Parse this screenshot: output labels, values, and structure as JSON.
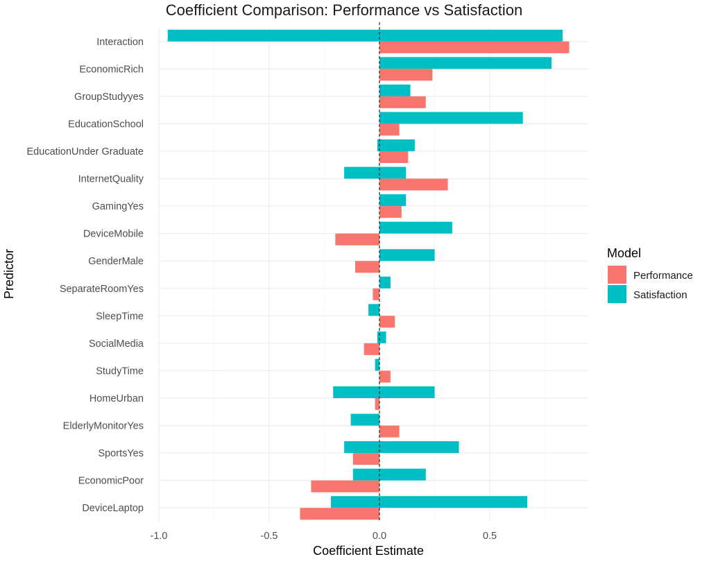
{
  "chart_data": {
    "type": "bar",
    "orientation": "horizontal",
    "title": "Coefficient Comparison: Performance vs Satisfaction",
    "xlabel": "Coefficient Estimate",
    "ylabel": "Predictor",
    "xlim": [
      -1.0,
      0.95
    ],
    "xticks": [
      -1.0,
      -0.5,
      0.0,
      0.5
    ],
    "xtick_labels": [
      "-1.0",
      "-0.5",
      "0.0",
      "0.5"
    ],
    "reference_line": 0,
    "grid": true,
    "legend": {
      "title": "Model",
      "position": "right"
    },
    "categories": [
      "Interaction",
      "EconomicRich",
      "GroupStudyyes",
      "EducationSchool",
      "EducationUnder Graduate",
      "InternetQuality",
      "GamingYes",
      "DeviceMobile",
      "GenderMale",
      "SeparateRoomYes",
      "SleepTime",
      "SocialMedia",
      "StudyTime",
      "HomeUrban",
      "ElderlyMonitorYes",
      "SportsYes",
      "EconomicPoor",
      "DeviceLaptop"
    ],
    "series": [
      {
        "name": "Performance",
        "color": "#F8766D",
        "values": [
          0.86,
          0.24,
          0.21,
          0.09,
          0.13,
          0.31,
          0.1,
          -0.2,
          -0.11,
          -0.03,
          0.07,
          -0.07,
          0.05,
          -0.02,
          0.09,
          -0.12,
          -0.31,
          -0.36
        ]
      },
      {
        "name": "Satisfaction",
        "color": "#00BFC4",
        "values": [
          -0.96,
          0.78,
          0.14,
          0.65,
          0.16,
          -0.16,
          0.12,
          0.33,
          0.25,
          0.05,
          -0.05,
          0.03,
          -0.02,
          -0.21,
          -0.13,
          -0.16,
          -0.12,
          -0.22
        ]
      }
    ],
    "extra_series_values": [
      {
        "series": "Satisfaction",
        "category": "Interaction",
        "value": 0.83
      },
      {
        "series": "Satisfaction",
        "category": "InternetQuality",
        "value": 0.12
      },
      {
        "series": "Satisfaction",
        "category": "HomeUrban",
        "value": 0.25
      },
      {
        "series": "Satisfaction",
        "category": "SportsYes",
        "value": 0.36
      },
      {
        "series": "Satisfaction",
        "category": "EconomicPoor",
        "value": 0.21
      },
      {
        "series": "Satisfaction",
        "category": "DeviceLaptop",
        "value": 0.67
      },
      {
        "series": "Satisfaction",
        "category": "SocialMedia",
        "value": -0.01
      },
      {
        "series": "Satisfaction",
        "category": "EducationUnder Graduate",
        "value": -0.01
      }
    ]
  }
}
